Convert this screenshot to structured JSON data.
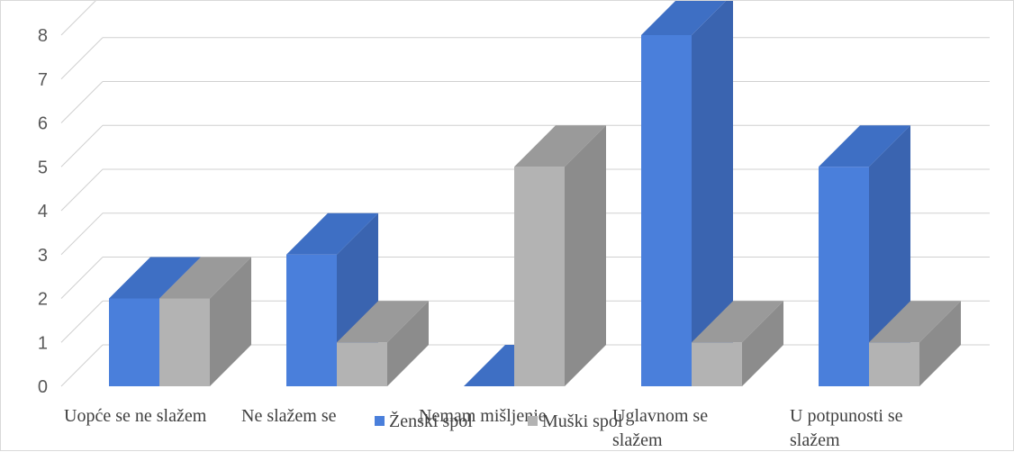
{
  "chart_data": {
    "type": "bar",
    "style": "3d-clustered-column",
    "categories": [
      [
        "Uopće se ne slažem"
      ],
      [
        "Ne slažem se"
      ],
      [
        "Nemam mišljenje"
      ],
      [
        "Uglavnom se",
        "slažem"
      ],
      [
        "U potpunosti se",
        "slažem"
      ]
    ],
    "series": [
      {
        "name": "Ženski spol",
        "values": [
          2,
          3,
          0,
          8,
          5
        ],
        "color": "#4a7fdb",
        "side_color": "#3a64b0",
        "top_color": "#3e6fc4"
      },
      {
        "name": "Muški spol",
        "values": [
          2,
          1,
          5,
          1,
          1
        ],
        "color": "#b3b3b3",
        "side_color": "#8c8c8c",
        "top_color": "#9a9a9a"
      }
    ],
    "ylim": [
      0,
      8
    ],
    "yticks": [
      "0",
      "1",
      "2",
      "3",
      "4",
      "5",
      "6",
      "7",
      "8"
    ],
    "grid": true,
    "legend_position": "bottom",
    "title": "",
    "xlabel": "",
    "ylabel": ""
  }
}
